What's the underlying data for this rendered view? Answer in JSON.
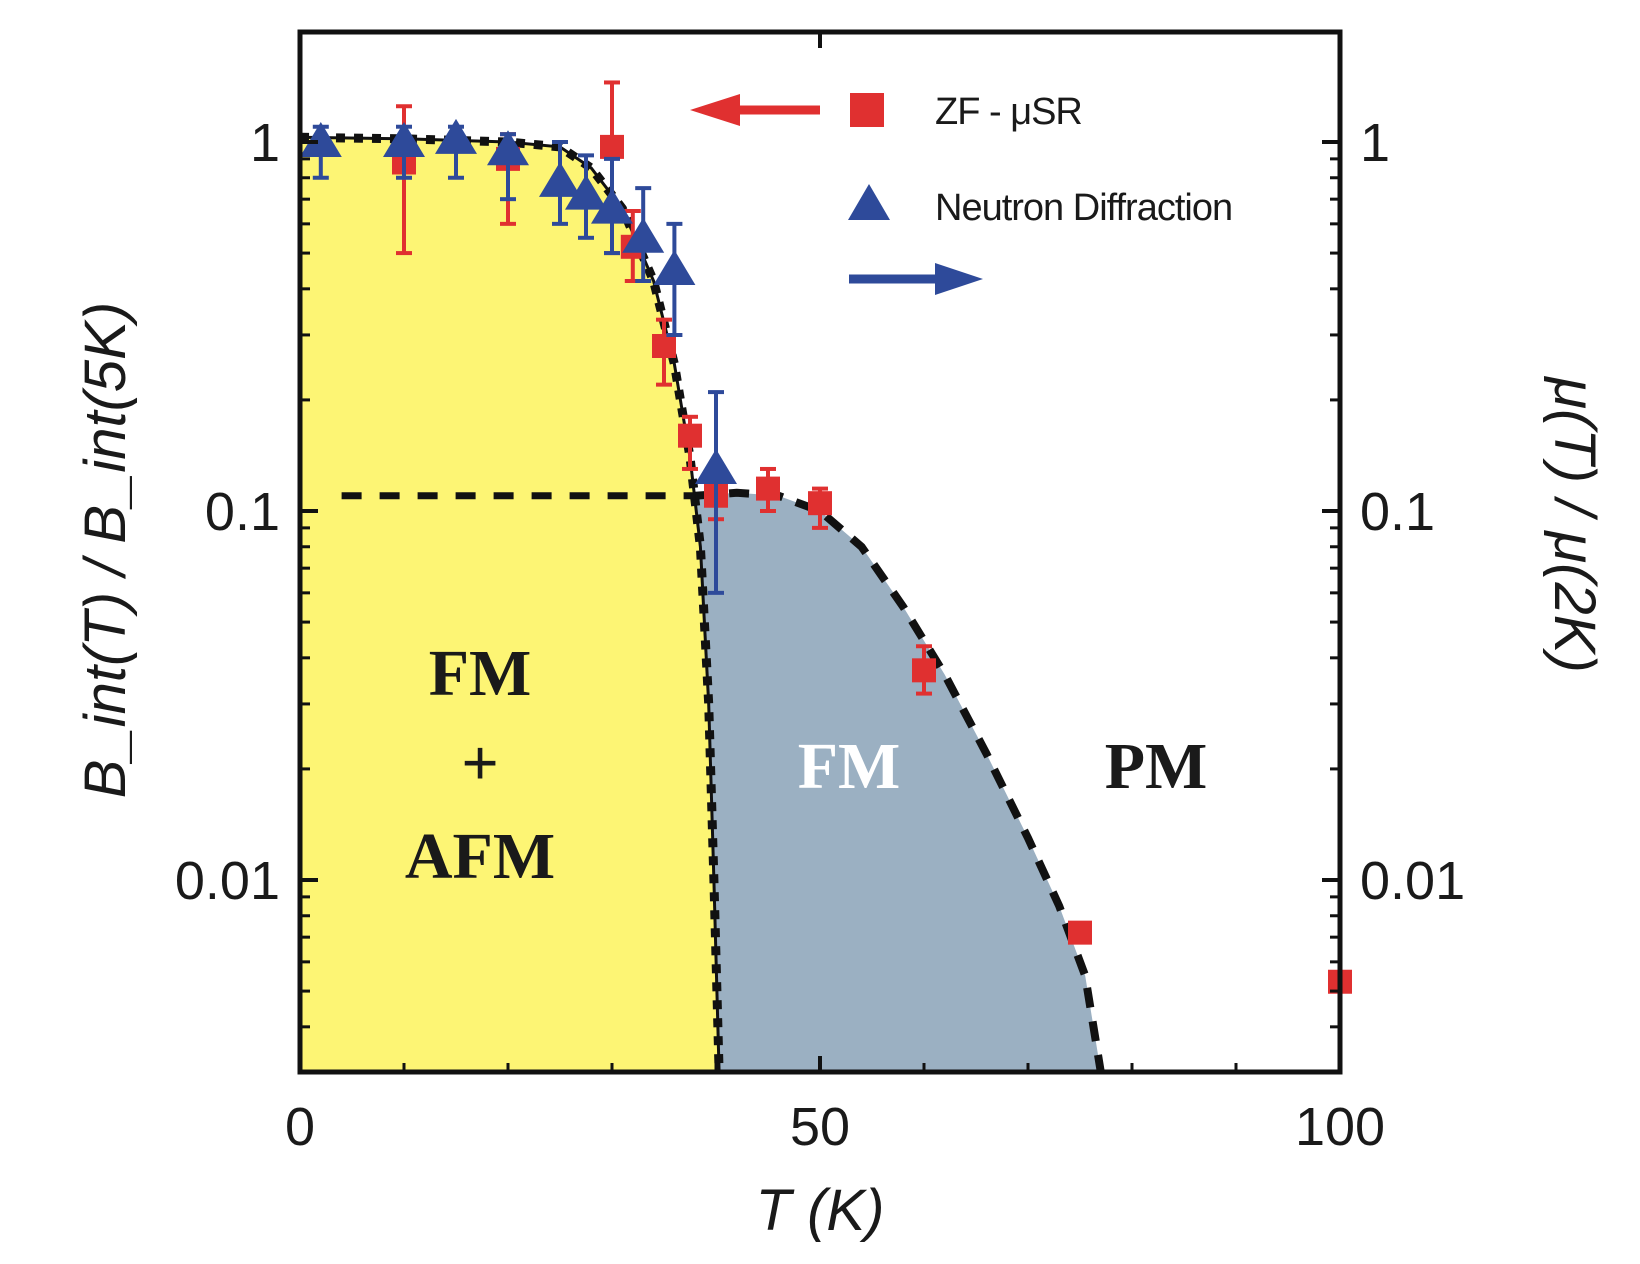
{
  "chart_data": {
    "type": "scatter",
    "xlabel": "T (K)",
    "ylabel": "B_int(T) / B_int(5K)",
    "ylabel_right": "μ(T) / μ(2K)",
    "xlim": [
      0,
      100
    ],
    "ylim": [
      0.003,
      2
    ],
    "yscale": "log",
    "grid": false,
    "legend_placement": "top-right",
    "x_ticks": [
      "0",
      "50",
      "100"
    ],
    "y_ticks": [
      "1",
      "0.1",
      "0.01"
    ],
    "y_ticks_right": [
      "1",
      "0.1",
      "0.01"
    ],
    "series": [
      {
        "name": "ZF - μSR",
        "marker": "square",
        "color": "#e03030",
        "axis": "left",
        "points": [
          {
            "x": 10,
            "y": 0.88,
            "lo": 0.5,
            "hi": 1.25
          },
          {
            "x": 20,
            "y": 0.9,
            "lo": 0.6,
            "hi": 1.05
          },
          {
            "x": 30,
            "y": 0.97,
            "lo": 0.5,
            "hi": 1.45
          },
          {
            "x": 32,
            "y": 0.52,
            "lo": 0.42,
            "hi": 0.65
          },
          {
            "x": 35,
            "y": 0.28,
            "lo": 0.22,
            "hi": 0.33
          },
          {
            "x": 37.5,
            "y": 0.16,
            "lo": 0.13,
            "hi": 0.18
          },
          {
            "x": 40,
            "y": 0.11,
            "lo": 0.095,
            "hi": 0.125
          },
          {
            "x": 45,
            "y": 0.115,
            "lo": 0.1,
            "hi": 0.13
          },
          {
            "x": 50,
            "y": 0.105,
            "lo": 0.09,
            "hi": 0.115
          },
          {
            "x": 60,
            "y": 0.037,
            "lo": 0.032,
            "hi": 0.043
          },
          {
            "x": 75,
            "y": 0.0072
          },
          {
            "x": 100,
            "y": 0.0053
          }
        ]
      },
      {
        "name": "Neutron Diffraction",
        "marker": "triangle",
        "color": "#2e4a9a",
        "axis": "right",
        "points": [
          {
            "x": 2,
            "y": 1.0,
            "lo": 0.8,
            "hi": 1.1
          },
          {
            "x": 10,
            "y": 1.0,
            "lo": 0.8,
            "hi": 1.1
          },
          {
            "x": 15,
            "y": 1.02,
            "lo": 0.8,
            "hi": 1.1
          },
          {
            "x": 20,
            "y": 0.95,
            "lo": 0.7,
            "hi": 1.05
          },
          {
            "x": 25,
            "y": 0.78,
            "lo": 0.6,
            "hi": 1.0
          },
          {
            "x": 27.5,
            "y": 0.72,
            "lo": 0.55,
            "hi": 0.92
          },
          {
            "x": 30,
            "y": 0.66,
            "lo": 0.5,
            "hi": 0.9
          },
          {
            "x": 33,
            "y": 0.55,
            "lo": 0.42,
            "hi": 0.75
          },
          {
            "x": 36,
            "y": 0.45,
            "lo": 0.3,
            "hi": 0.6
          },
          {
            "x": 40,
            "y": 0.13,
            "lo": 0.06,
            "hi": 0.21
          }
        ]
      }
    ],
    "boundaries": {
      "fm_afm": [
        [
          0,
          1.03
        ],
        [
          10,
          1.02
        ],
        [
          20,
          1.0
        ],
        [
          25,
          0.97
        ],
        [
          28,
          0.85
        ],
        [
          31,
          0.66
        ],
        [
          34,
          0.42
        ],
        [
          36,
          0.25
        ],
        [
          37.5,
          0.14
        ],
        [
          38.5,
          0.08
        ],
        [
          39.3,
          0.03
        ],
        [
          39.8,
          0.01
        ],
        [
          40.3,
          0.003
        ]
      ],
      "fm": [
        [
          38,
          0.11
        ],
        [
          42,
          0.112
        ],
        [
          46,
          0.11
        ],
        [
          50,
          0.1
        ],
        [
          54,
          0.08
        ],
        [
          58,
          0.055
        ],
        [
          62,
          0.036
        ],
        [
          66,
          0.022
        ],
        [
          70,
          0.013
        ],
        [
          73,
          0.0085
        ],
        [
          75.5,
          0.0055
        ],
        [
          77,
          0.003
        ]
      ],
      "afm_level": [
        [
          4,
          0.11
        ],
        [
          38,
          0.11
        ]
      ]
    },
    "region_colors": {
      "fm_afm": "#fdf574",
      "fm": "#9bb0c2"
    },
    "regions": {
      "fm_afm": [
        "FM",
        "+",
        "AFM"
      ],
      "fm": "FM",
      "pm": "PM"
    }
  }
}
